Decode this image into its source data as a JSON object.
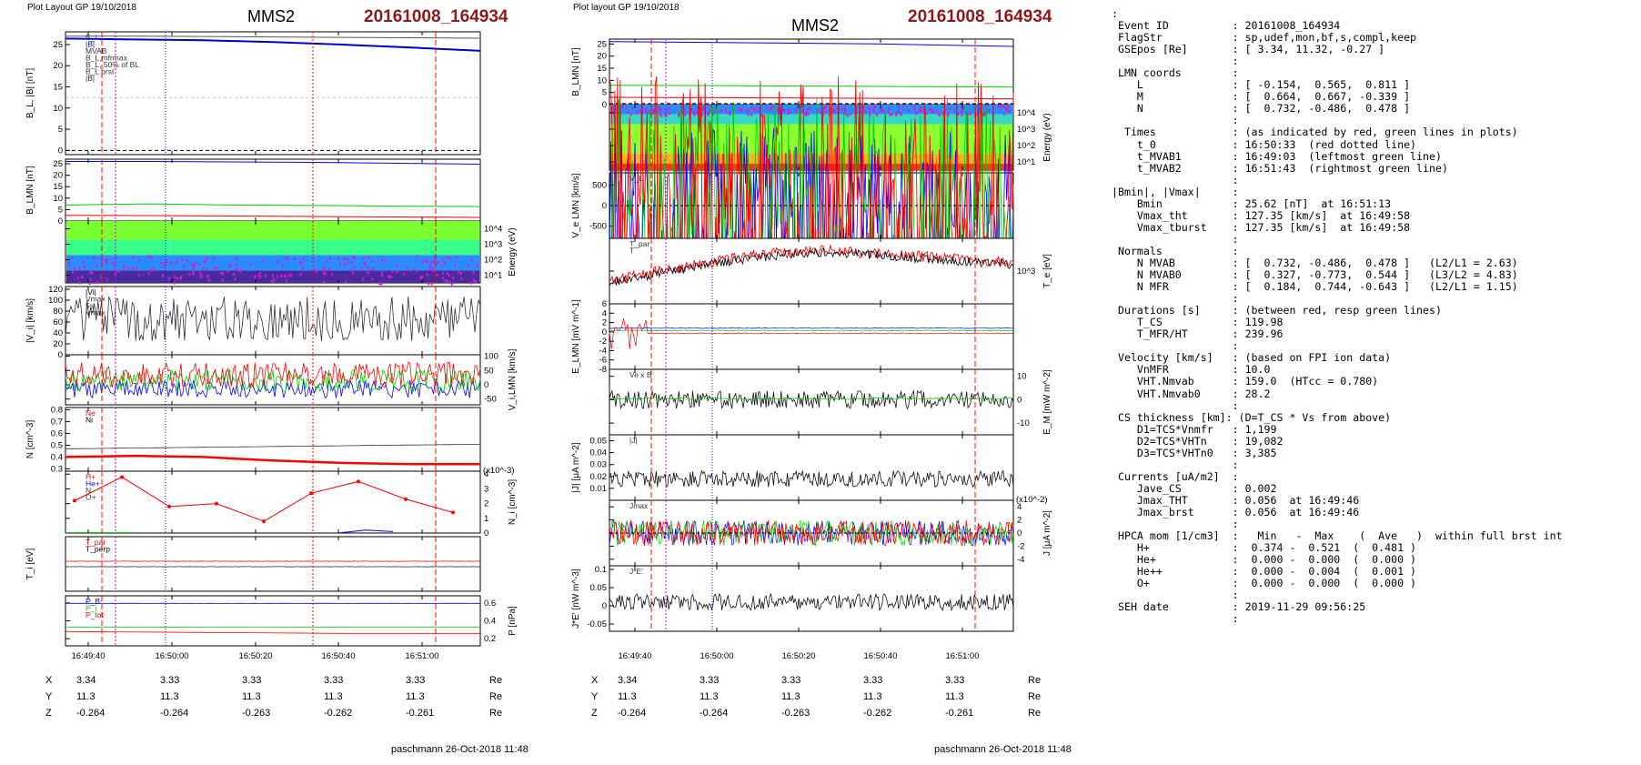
{
  "left_panel": {
    "layout_label": "Plot Layout GP 19/10/2018",
    "spacecraft": "MMS2",
    "event": "20161008_164934",
    "footer": "paschmann 26-Oct-2018 11:48",
    "time_ticks": [
      "16:49:40",
      "16:50:00",
      "16:50:20",
      "16:50:40",
      "16:51:00"
    ],
    "positions": {
      "X": [
        "3.34",
        "3.33",
        "3.33",
        "3.33",
        "3.33"
      ],
      "Y": [
        "11.3",
        "11.3",
        "11.3",
        "11.3",
        "11.3"
      ],
      "Z": [
        "-0.264",
        "-0.264",
        "-0.263",
        "-0.262",
        "-0.261"
      ],
      "unit": "Re"
    }
  },
  "right_panel": {
    "layout_label": "Plot layout GP 19/10/2018",
    "spacecraft": "MMS2",
    "event": "20161008_164934",
    "footer": "paschmann 26-Oct-2018 11:48",
    "time_ticks": [
      "16:49:40",
      "16:50:00",
      "16:50:20",
      "16:50:40",
      "16:51:00"
    ],
    "positions": {
      "X": [
        "3.34",
        "3.33",
        "3.33",
        "3.33",
        "3.33"
      ],
      "Y": [
        "11.3",
        "11.3",
        "11.3",
        "11.3",
        "11.3"
      ],
      "Z": [
        "-0.264",
        "-0.264",
        "-0.263",
        "-0.262",
        "-0.261"
      ],
      "unit": "Re"
    }
  },
  "info_lines": [
    ":",
    " Event ID          : 20161008_164934",
    " FlagStr           : sp,udef,mon,bf,s,compl,keep",
    " GSEpos [Re]       : [ 3.34, 11.32, -0.27 ]",
    "                   :",
    " LMN coords        :",
    "    L              : [ -0.154,  0.565,  0.811 ]",
    "    M              : [  0.664,  0.667, -0.339 ]",
    "    N              : [  0.732, -0.486,  0.478 ]",
    "                   :",
    "  Times            : (as indicated by red, green lines in plots)",
    "    t_0            : 16:50:33  (red dotted line)",
    "    t_MVAB1        : 16:49:03  (leftmost green line)",
    "    t_MVAB2        : 16:51:43  (rightmost green line)",
    "                   :",
    "|Bmin|, |Vmax|     :",
    "    Bmin           : 25.62 [nT]  at 16:51:13",
    "    Vmax_tht       : 127.35 [km/s]  at 16:49:58",
    "    Vmax_tburst    : 127.35 [km/s]  at 16:49:58",
    "                   :",
    " Normals           :",
    "    N MVAB         : [  0.732, -0.486,  0.478 ]   (L2/L1 = 2.63)",
    "    N MVAB0        : [  0.327, -0.773,  0.544 ]   (L3/L2 = 4.83)",
    "    N MFR          : [  0.184,  0.744, -0.643 ]   (L2/L1 = 1.15)",
    "                   :",
    " Durations [s]     : (between red, resp green lines)",
    "    T_CS           : 119.98",
    "    T_MFR/HT       : 239.96",
    "                   :",
    " Velocity [km/s]   : (based on FPI ion data)",
    "    VnMFR          : 10.0",
    "    VHT.Nmvab      : 159.0  (HTcc = 0.780)",
    "    VHT.Nmvab0     : 28.2",
    "                   :",
    " CS thickness [km]: (D=T_CS * Vs from above)",
    "    D1=TCS*Vnmfr   : 1,199",
    "    D2=TCS*VHTn    : 19,082",
    "    D3=TCS*VHTn0   : 3,385",
    "                   :",
    " Currents [uA/m2]  :",
    "    Jave_CS        : 0.002",
    "    Jmax_THT       : 0.056  at 16:49:46",
    "    Jmax_brst      : 0.056  at 16:49:46",
    "                   :",
    " HPCA mom [1/cm3]  :   Min   -  Max    (  Ave   )  within full brst int",
    "    H+             :  0.374 -  0.521  (  0.481 )",
    "    He+            :  0.000 -  0.000  (  0.000 )",
    "    He++           :  0.000 -  0.004  (  0.001 )",
    "    O+             :  0.000 -  0.000  (  0.000 )",
    "                   :",
    " SEH date          : 2019-11-29 09:56:25",
    "                   :"
  ],
  "chart_data": [
    {
      "type": "line",
      "panel": "left-1",
      "ylabel": "B_L, |B| [nT]",
      "yticks": [
        0,
        5,
        10,
        15,
        20,
        25
      ],
      "ylim": [
        -1,
        28
      ],
      "legend": [
        "B_L",
        "|B|",
        "MVAB",
        "B_L,mfrmax",
        "B_L, 50% of BL",
        "B_L prst",
        "|B|"
      ],
      "series": [
        {
          "name": "|B|",
          "color": "#555555",
          "values": [
            27.0,
            27.0,
            26.9,
            26.8,
            26.7,
            26.6,
            26.5
          ]
        },
        {
          "name": "B_L",
          "color": "#0000cc",
          "values": [
            26.4,
            26.2,
            26.0,
            25.6,
            25.0,
            24.3,
            23.5
          ]
        }
      ]
    },
    {
      "type": "line",
      "panel": "left-2",
      "ylabel": "B_LMN [nT]",
      "yticks": [
        0,
        5,
        10,
        15,
        20,
        25
      ],
      "series": [
        {
          "name": "B_L",
          "color": "#0000ff",
          "values": [
            26,
            26,
            25.8,
            25.6,
            25.2,
            24.8
          ]
        },
        {
          "name": "B_M",
          "color": "#00cc00",
          "values": [
            7,
            7.5,
            7,
            6.8,
            6.5,
            6.3
          ]
        },
        {
          "name": "B_N",
          "color": "#ff0000",
          "values": [
            2.5,
            2.4,
            2.2,
            2.0,
            1.8,
            1.6
          ]
        }
      ]
    },
    {
      "type": "heatmap",
      "panel": "left-3",
      "ylabel": "Energy (eV)",
      "yticks": [
        "10^1",
        "10^2",
        "10^3",
        "10^4"
      ]
    },
    {
      "type": "line",
      "panel": "left-4",
      "ylabel": "|V_i| [km/s]",
      "yticks": [
        0,
        20,
        40,
        60,
        80,
        100,
        120
      ],
      "legend": [
        "|Vi|",
        "Vmax",
        "5s",
        "Vmax"
      ],
      "series": [
        {
          "name": "|Vi|",
          "color": "#000000",
          "values": [
            60,
            80,
            110,
            90,
            70,
            85,
            75,
            70,
            65,
            60
          ]
        }
      ]
    },
    {
      "type": "line",
      "panel": "left-5",
      "ylabel": "V_i,LMN [km/s]",
      "yticks": [
        -50,
        0,
        50,
        100
      ],
      "series": [
        {
          "name": "V_L",
          "color": "#ff0000",
          "values": [
            30,
            40,
            50,
            35,
            30
          ]
        },
        {
          "name": "V_M",
          "color": "#00cc00",
          "values": [
            10,
            15,
            20,
            15,
            10
          ]
        },
        {
          "name": "V_N",
          "color": "#0000ff",
          "values": [
            -25,
            -20,
            -20,
            -15,
            -20
          ]
        }
      ]
    },
    {
      "type": "line",
      "panel": "left-6",
      "ylabel": "N [cm^-3]",
      "yticks": [
        0.3,
        0.4,
        0.5,
        0.6,
        0.7,
        0.8
      ],
      "legend": [
        "Ne",
        "Ni"
      ],
      "series": [
        {
          "name": "Ne",
          "color": "#ff0000",
          "values": [
            0.4,
            0.41,
            0.39,
            0.36,
            0.35,
            0.34,
            0.34
          ]
        },
        {
          "name": "Ni",
          "color": "#000000",
          "values": [
            0.42,
            0.45,
            0.48,
            0.5,
            0.5,
            0.49,
            0.5
          ]
        }
      ]
    },
    {
      "type": "line",
      "panel": "left-7",
      "ylabel": "N_i [cm^-3]",
      "yticks": [
        0,
        1,
        2,
        3,
        4
      ],
      "multiplier": "(x10^-3)",
      "legend": [
        "H+",
        "He+",
        "N",
        "O+"
      ],
      "series": [
        {
          "name": "He+",
          "color": "#ff0000",
          "x": [
            0,
            1,
            2,
            3,
            4,
            5,
            6,
            7,
            8
          ],
          "values": [
            2.2,
            3.8,
            1.8,
            2.0,
            0.8,
            2.7,
            3.5,
            2.3,
            1.4
          ]
        },
        {
          "name": "O+",
          "color": "#0000ff",
          "values": [
            0,
            0,
            0,
            0,
            0,
            0,
            0.2,
            0.1,
            0
          ]
        }
      ]
    },
    {
      "type": "line",
      "panel": "left-8",
      "ylabel": "T_i [eV]",
      "legend": [
        "T_par",
        "T_perp"
      ],
      "series": [
        {
          "name": "T_perp",
          "color": "#ff0000",
          "values": []
        },
        {
          "name": "T_par",
          "color": "#000000",
          "values": []
        }
      ]
    },
    {
      "type": "line",
      "panel": "left-9",
      "ylabel": "P [nPa]",
      "yticks": [
        0.2,
        0.4,
        0.6
      ],
      "legend": [
        "P_B",
        "P_i",
        "P_tot"
      ],
      "series": [
        {
          "name": "P_tot",
          "color": "#0000ff",
          "values": [
            0.6,
            0.6,
            0.59,
            0.58
          ]
        },
        {
          "name": "P_i",
          "color": "#00cc00",
          "values": [
            0.36,
            0.32,
            0.33,
            0.34
          ]
        },
        {
          "name": "P_B",
          "color": "#ff0000",
          "values": [
            0.28,
            0.27,
            0.26,
            0.26
          ]
        }
      ]
    },
    {
      "type": "line",
      "panel": "right-1",
      "ylabel": "B_LMN [nT]",
      "yticks": [
        0,
        5,
        10,
        15,
        20,
        25
      ],
      "series": [
        {
          "name": "B_L",
          "color": "#0000ff",
          "values": [
            26,
            25.5,
            25,
            24
          ]
        },
        {
          "name": "B_M",
          "color": "#00cc00",
          "values": [
            8,
            7.8,
            7.5,
            7.2
          ]
        },
        {
          "name": "B_N",
          "color": "#ff0000",
          "values": [
            3,
            2.8,
            2.6,
            2.4
          ]
        }
      ]
    },
    {
      "type": "heatmap",
      "panel": "right-2",
      "ylabel": "Energy (eV)",
      "yticks": [
        "10^1",
        "10^2",
        "10^3",
        "10^4"
      ]
    },
    {
      "type": "line",
      "panel": "right-3",
      "ylabel": "V_e LMN [km/s]",
      "yticks": [
        -500,
        0,
        500
      ],
      "legend": [
        "V_L"
      ]
    },
    {
      "type": "line",
      "panel": "right-4",
      "ylabel": "T_e [eV]",
      "yticks": [
        "10^3"
      ],
      "legend": [
        "T_par",
        "T"
      ]
    },
    {
      "type": "line",
      "panel": "right-5",
      "ylabel": "E_LMN [mV m^-1]",
      "yticks": [
        -8,
        -6,
        -4,
        -2,
        0,
        2,
        4,
        6
      ]
    },
    {
      "type": "line",
      "panel": "right-6",
      "ylabel": "E_M [mW m^-2]",
      "yticks": [
        -10,
        0,
        10
      ],
      "legend": [
        "Ve x B"
      ]
    },
    {
      "type": "line",
      "panel": "right-7",
      "ylabel": "|J| [μA m^-2]",
      "yticks": [
        0.01,
        0.02,
        0.03,
        0.04,
        0.05
      ],
      "legend": [
        "|J|"
      ]
    },
    {
      "type": "line",
      "panel": "right-8",
      "ylabel": "J [μA m^-2]",
      "yticks": [
        -4,
        -2,
        0,
        2,
        4
      ],
      "multiplier": "(x10^-2)",
      "legend": [
        "Jmax"
      ]
    },
    {
      "type": "line",
      "panel": "right-9",
      "ylabel": "J*E' [nW m^-3]",
      "yticks": [
        -0.05,
        0,
        0.05,
        0.1
      ],
      "legend": [
        "J*E'"
      ]
    }
  ]
}
